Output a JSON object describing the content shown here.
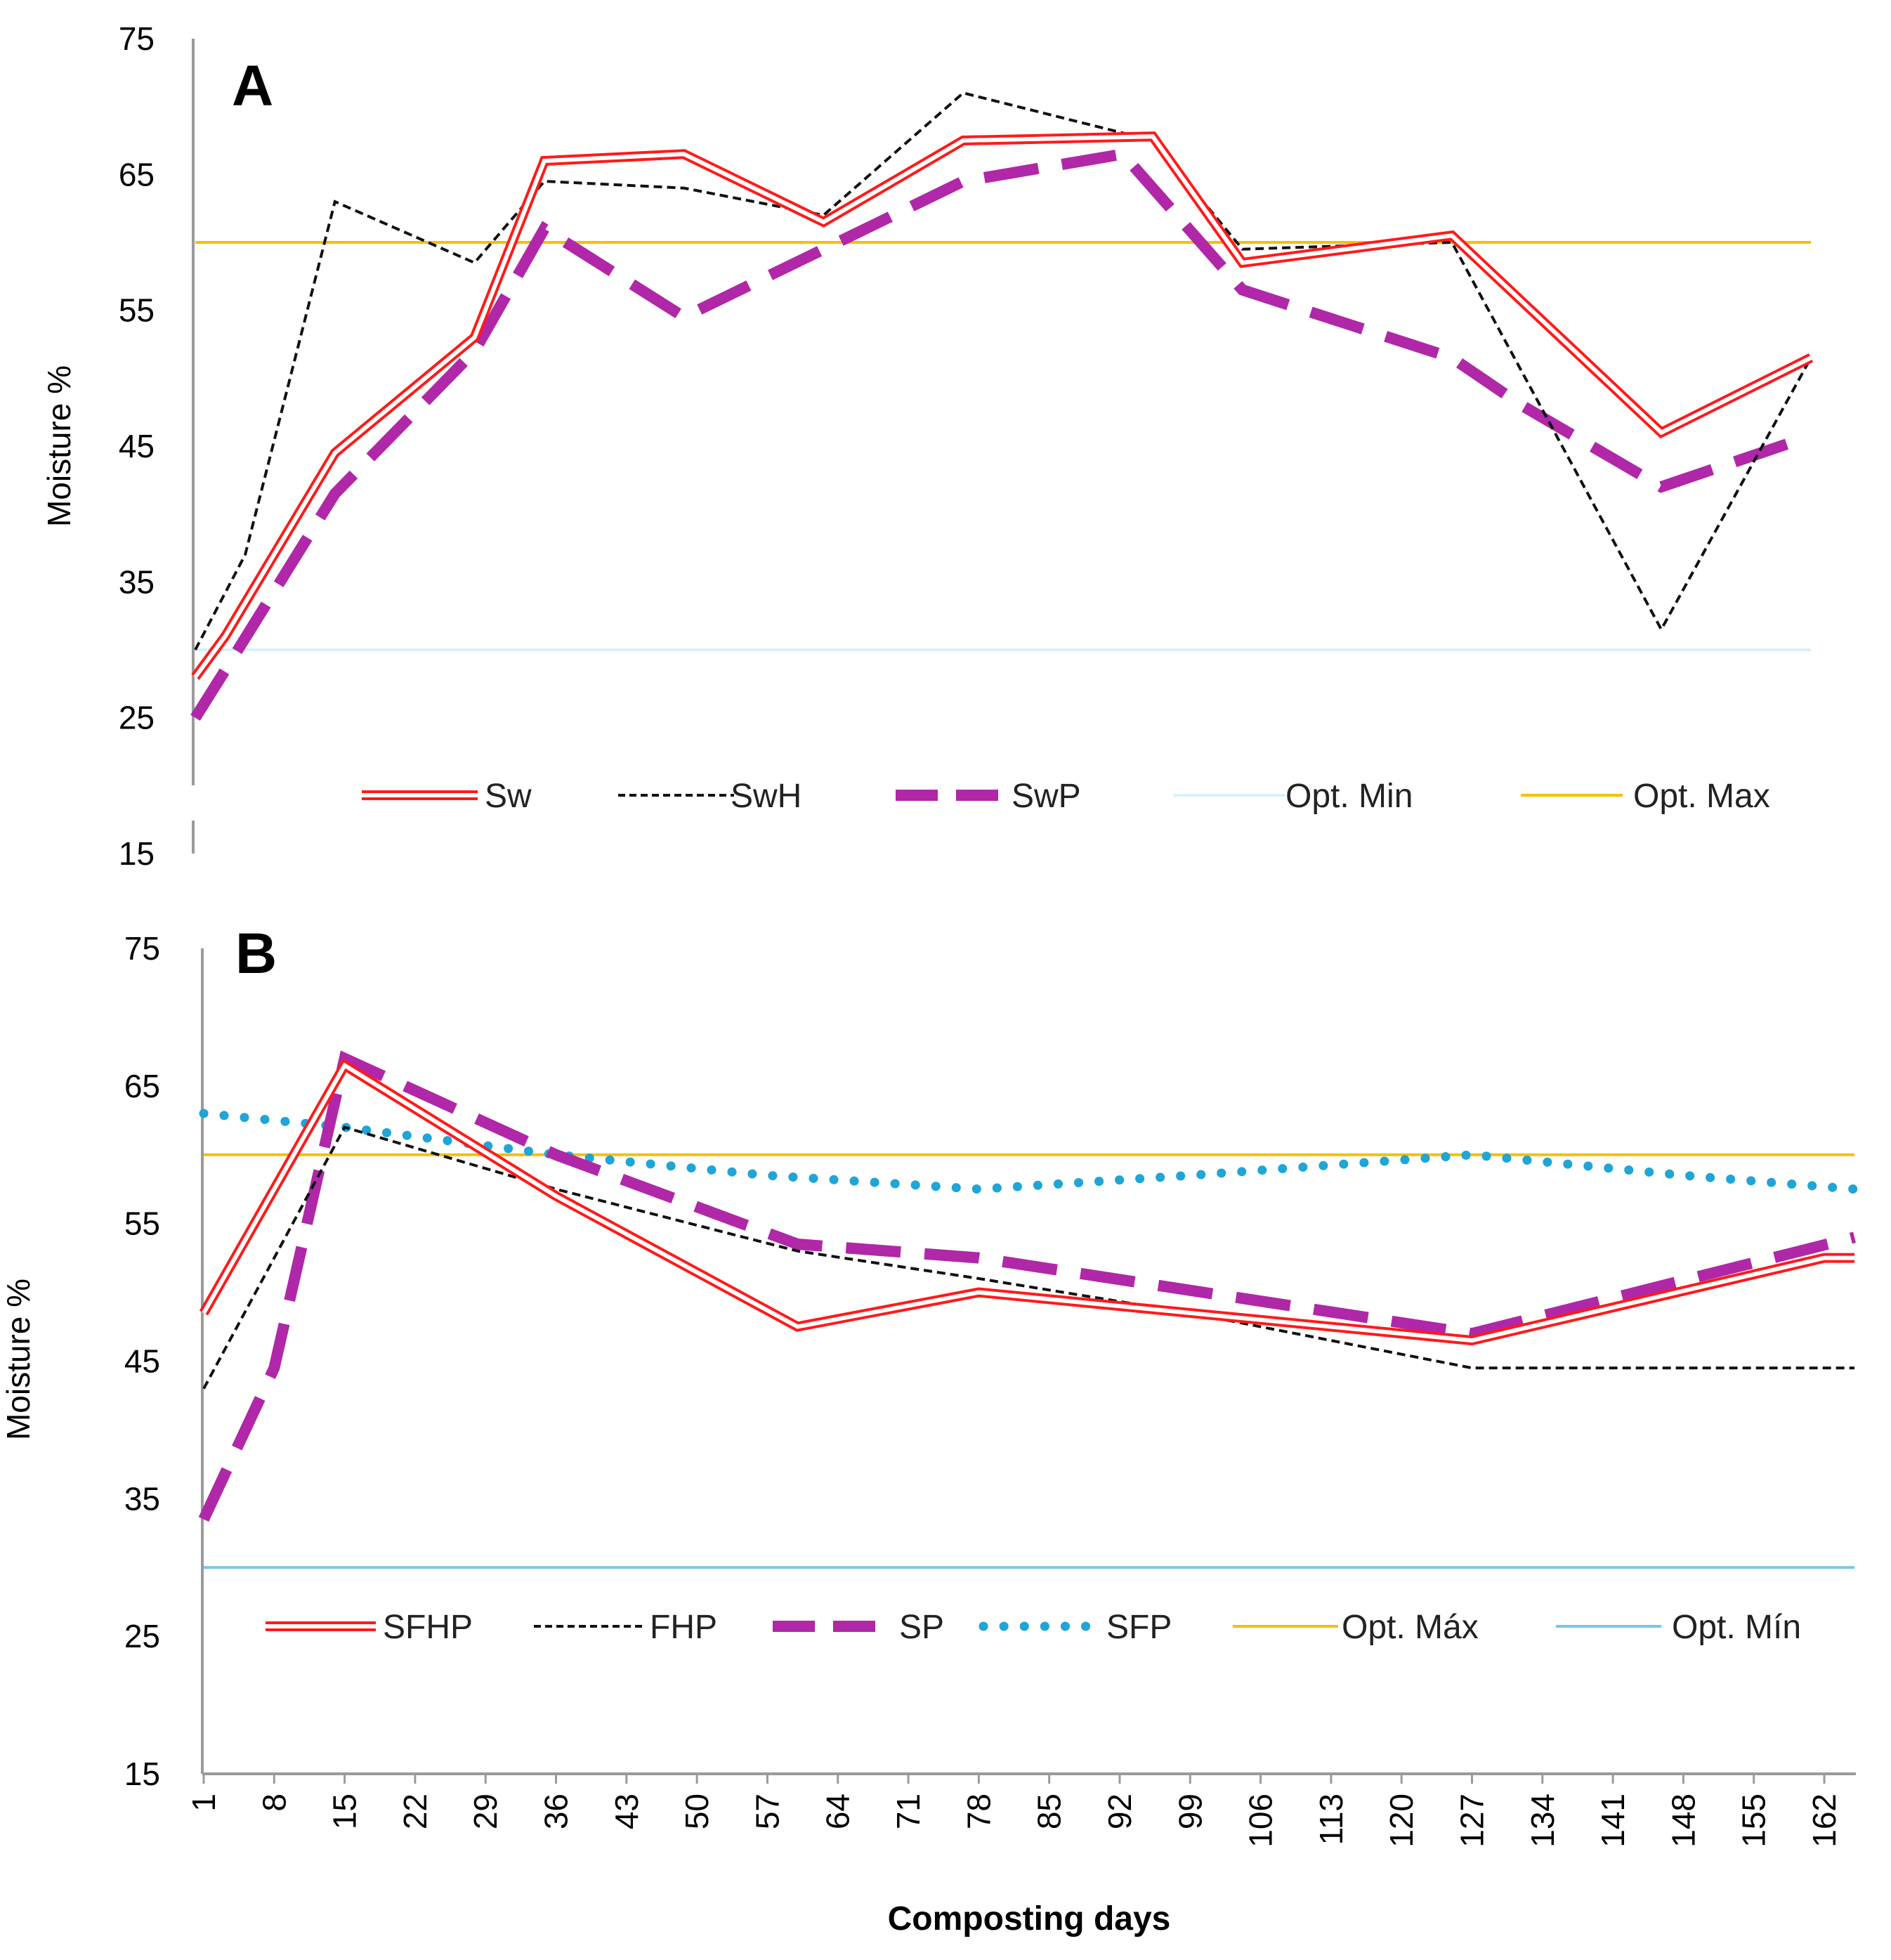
{
  "chart_data": [
    {
      "type": "line",
      "panel_label": "A",
      "ylabel": "Moisture %",
      "xlabel": "",
      "ylim": [
        15,
        75
      ],
      "yticks": [
        15,
        25,
        35,
        45,
        55,
        65,
        75
      ],
      "x": [
        1,
        4,
        8,
        15,
        22,
        29,
        36,
        43,
        50,
        57,
        64,
        71,
        78,
        85,
        92,
        99,
        106,
        113,
        120,
        127,
        134,
        141,
        148,
        155,
        162
      ],
      "xlim": [
        1,
        163
      ],
      "legend_position": "bottom",
      "series": [
        {
          "name": "Sw",
          "style": "double",
          "color": "#ff1a1a",
          "points": [
            [
              1,
              28
            ],
            [
              4,
              31
            ],
            [
              15,
              44.5
            ],
            [
              29,
              53
            ],
            [
              36,
              66
            ],
            [
              50,
              66.5
            ],
            [
              64,
              61.5
            ],
            [
              78,
              67.5
            ],
            [
              97,
              67.8
            ],
            [
              106,
              58.5
            ],
            [
              127,
              60.5
            ],
            [
              148,
              46
            ],
            [
              163,
              51.5
            ]
          ]
        },
        {
          "name": "SwH",
          "style": "dashed-thin",
          "color": "#111111",
          "points": [
            [
              1,
              30
            ],
            [
              6,
              37
            ],
            [
              15,
              63
            ],
            [
              29,
              58.5
            ],
            [
              36,
              64.5
            ],
            [
              50,
              64
            ],
            [
              64,
              62
            ],
            [
              78,
              71
            ],
            [
              97,
              67.5
            ],
            [
              106,
              59.5
            ],
            [
              127,
              60
            ],
            [
              148,
              31.5
            ],
            [
              163,
              51.5
            ]
          ]
        },
        {
          "name": "SwP",
          "style": "dashed-thick",
          "color": "#b027a8",
          "points": [
            [
              1,
              25
            ],
            [
              4,
              28.5
            ],
            [
              15,
              41.5
            ],
            [
              29,
              52
            ],
            [
              36,
              61
            ],
            [
              50,
              54.5
            ],
            [
              64,
              59.5
            ],
            [
              78,
              64.5
            ],
            [
              94,
              66.5
            ],
            [
              106,
              56.5
            ],
            [
              127,
              51.5
            ],
            [
              134,
              48
            ],
            [
              148,
              42
            ],
            [
              162,
              45.5
            ]
          ]
        },
        {
          "name": "Opt. Min",
          "style": "solid",
          "color": "#d6f1fb",
          "points": [
            [
              1,
              30
            ],
            [
              163,
              30
            ]
          ]
        },
        {
          "name": "Opt. Max",
          "style": "solid",
          "color": "#f5c000",
          "points": [
            [
              1,
              60
            ],
            [
              163,
              60
            ]
          ]
        }
      ]
    },
    {
      "type": "line",
      "panel_label": "B",
      "ylabel": "Moisture %",
      "xlabel": "Composting days",
      "ylim": [
        15,
        75
      ],
      "yticks": [
        15,
        25,
        35,
        45,
        55,
        65,
        75
      ],
      "x": [
        1,
        8,
        15,
        22,
        29,
        36,
        43,
        50,
        57,
        64,
        71,
        78,
        85,
        92,
        99,
        106,
        113,
        120,
        127,
        134,
        141,
        148,
        155,
        162
      ],
      "xtick_labels": [
        "1",
        "8",
        "15",
        "22",
        "29",
        "36",
        "43",
        "50",
        "57",
        "64",
        "71",
        "78",
        "85",
        "92",
        "99",
        "106",
        "113",
        "120",
        "127",
        "134",
        "141",
        "148",
        "155",
        "162"
      ],
      "xlim": [
        1,
        165
      ],
      "legend_position": "bottom",
      "series": [
        {
          "name": "SFHP",
          "style": "double",
          "color": "#ff1a1a",
          "points": [
            [
              1,
              48.5
            ],
            [
              15,
              66.5
            ],
            [
              36,
              57
            ],
            [
              60,
              47.5
            ],
            [
              78,
              50
            ],
            [
              127,
              46.5
            ],
            [
              162,
              52.5
            ],
            [
              165,
              52.5
            ]
          ]
        },
        {
          "name": "FHP",
          "style": "dashed-thin",
          "color": "#111111",
          "points": [
            [
              1,
              43
            ],
            [
              15,
              62
            ],
            [
              29,
              59
            ],
            [
              36,
              57.5
            ],
            [
              60,
              53
            ],
            [
              78,
              51
            ],
            [
              99,
              48.5
            ],
            [
              127,
              44.5
            ],
            [
              165,
              44.5
            ]
          ]
        },
        {
          "name": "SP",
          "style": "dashed-thick",
          "color": "#b027a8",
          "points": [
            [
              1,
              33.5
            ],
            [
              8,
              44.5
            ],
            [
              15,
              67
            ],
            [
              36,
              60
            ],
            [
              60,
              53.5
            ],
            [
              78,
              52.5
            ],
            [
              127,
              47
            ],
            [
              165,
              54
            ]
          ]
        },
        {
          "name": "SFP",
          "style": "dotted",
          "color": "#1fa5d6",
          "points": [
            [
              1,
              63
            ],
            [
              15,
              62
            ],
            [
              36,
              60
            ],
            [
              57,
              58.5
            ],
            [
              78,
              57.5
            ],
            [
              99,
              58.5
            ],
            [
              127,
              60
            ],
            [
              148,
              58.5
            ],
            [
              165,
              57.5
            ]
          ]
        },
        {
          "name": "Opt. Máx",
          "style": "solid",
          "color": "#f5c000",
          "points": [
            [
              1,
              60
            ],
            [
              165,
              60
            ]
          ]
        },
        {
          "name": "Opt. Mín",
          "style": "solid",
          "color": "#7cc4e6",
          "points": [
            [
              1,
              30
            ],
            [
              165,
              30
            ]
          ]
        }
      ]
    }
  ]
}
